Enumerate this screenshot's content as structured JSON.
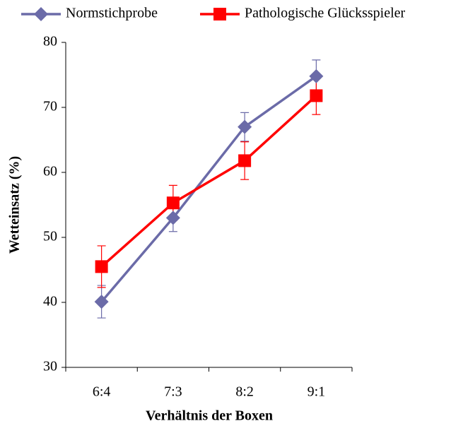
{
  "chart_data": {
    "type": "line",
    "x_label": "Verhältnis der Boxen",
    "y_label": "Wetteinsatz (%)",
    "categories": [
      "6:4",
      "7:3",
      "8:2",
      "9:1"
    ],
    "series": [
      {
        "name": "Normstichprobe",
        "color": "#6b6ba8",
        "marker": "diamond",
        "values": [
          40.1,
          53.0,
          67.0,
          74.8
        ],
        "errors": [
          2.5,
          2.1,
          2.2,
          2.5
        ]
      },
      {
        "name": "Pathologische Glücksspieler",
        "color": "#ff0000",
        "marker": "square",
        "values": [
          45.5,
          55.3,
          61.8,
          71.8
        ],
        "errors": [
          3.2,
          2.7,
          2.9,
          2.9
        ]
      }
    ],
    "ylim": [
      30,
      80
    ],
    "yticks": [
      30,
      40,
      50,
      60,
      70,
      80
    ],
    "legend": "top"
  }
}
